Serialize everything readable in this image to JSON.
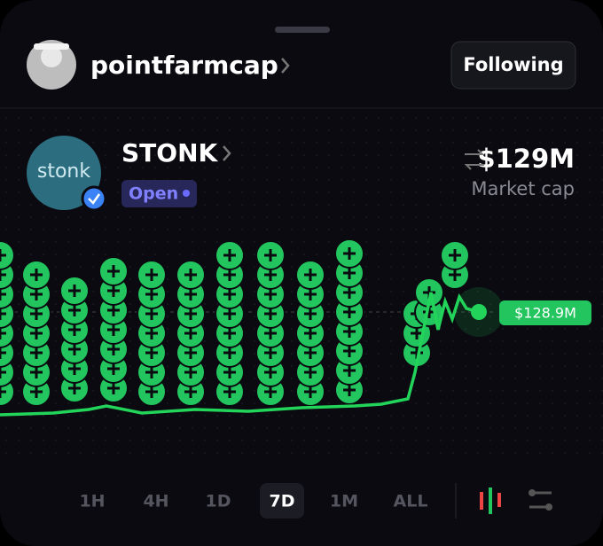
{
  "header": {
    "username": "pointfarmcap",
    "follow_button": "Following"
  },
  "token": {
    "logo_text": "stonk",
    "name": "STONK",
    "status": "Open",
    "market_cap": "$129M",
    "market_cap_label": "Market cap"
  },
  "chart": {
    "price_label": "$128.9M"
  },
  "timeframes": [
    "1H",
    "4H",
    "1D",
    "7D",
    "1M",
    "ALL"
  ],
  "selected_timeframe_index": 3
}
